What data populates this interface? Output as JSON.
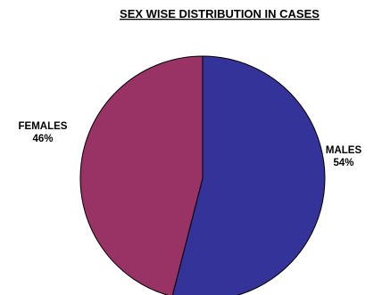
{
  "chart_data": {
    "type": "pie",
    "title": "SEX WISE DISTRIBUTION IN CASES",
    "slices": [
      {
        "name": "MALES",
        "value": 54,
        "label": "54%",
        "color": "#333399"
      },
      {
        "name": "FEMALES",
        "value": 46,
        "label": "46%",
        "color": "#993366"
      }
    ],
    "start": "12 o'clock",
    "direction": "clockwise",
    "outline_color": "#000000",
    "legend": "none"
  }
}
